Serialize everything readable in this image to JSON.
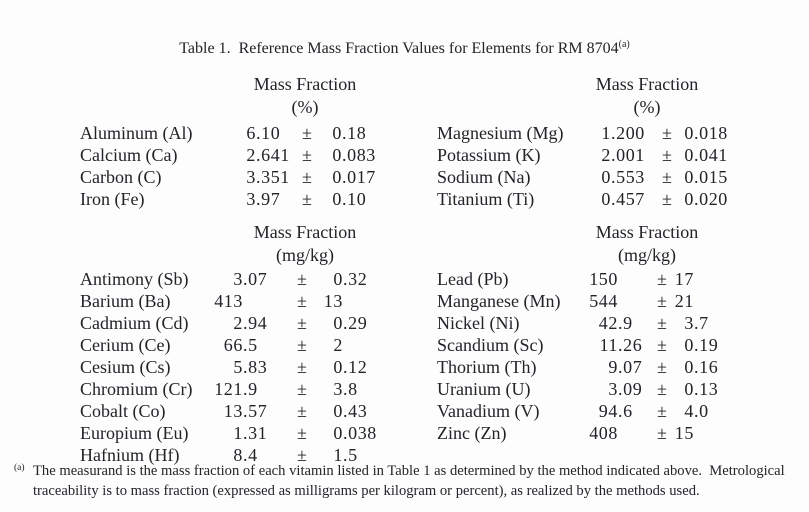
{
  "page": {
    "background": "#fdfdfd",
    "text_color": "#232329"
  },
  "title": {
    "text": "Table 1.  Reference Mass Fraction Values for Elements for RM 8704",
    "footnote_marker": "(a)"
  },
  "pm_symbol": "±",
  "sections": [
    {
      "id": "percent",
      "header": {
        "label": "Mass Fraction",
        "unit": "(%)"
      },
      "left_rows": [
        {
          "element": "Aluminum (Al)",
          "value": "6.10",
          "uncertainty": "0.18"
        },
        {
          "element": "Calcium (Ca)",
          "value": "2.641",
          "uncertainty": "0.083"
        },
        {
          "element": "Carbon (C)",
          "value": "3.351",
          "uncertainty": "0.017"
        },
        {
          "element": "Iron (Fe)",
          "value": "3.97",
          "uncertainty": "0.10"
        }
      ],
      "right_rows": [
        {
          "element": "Magnesium (Mg)",
          "value": "1.200",
          "uncertainty": "0.018"
        },
        {
          "element": "Potassium (K)",
          "value": "2.001",
          "uncertainty": "0.041"
        },
        {
          "element": "Sodium (Na)",
          "value": "0.553",
          "uncertainty": "0.015"
        },
        {
          "element": "Titanium (Ti)",
          "value": "0.457",
          "uncertainty": "0.020"
        }
      ]
    },
    {
      "id": "mg_per_kg",
      "header": {
        "label": "Mass Fraction",
        "unit": "(mg/kg)"
      },
      "left_rows": [
        {
          "element": "Antimony (Sb)",
          "value": "3.07",
          "uncertainty": "0.32"
        },
        {
          "element": "Barium (Ba)",
          "value": "413",
          "uncertainty": "13"
        },
        {
          "element": "Cadmium (Cd)",
          "value": "2.94",
          "uncertainty": "0.29"
        },
        {
          "element": "Cerium (Ce)",
          "value": "66.5",
          "uncertainty": "2"
        },
        {
          "element": "Cesium (Cs)",
          "value": "5.83",
          "uncertainty": "0.12"
        },
        {
          "element": "Chromium (Cr)",
          "value": "121.9",
          "uncertainty": "3.8"
        },
        {
          "element": "Cobalt (Co)",
          "value": "13.57",
          "uncertainty": "0.43"
        },
        {
          "element": "Europium (Eu)",
          "value": "1.31",
          "uncertainty": "0.038"
        },
        {
          "element": "Hafnium (Hf)",
          "value": "8.4",
          "uncertainty": "1.5"
        }
      ],
      "right_rows": [
        {
          "element": "Lead (Pb)",
          "value": "150",
          "uncertainty": "17"
        },
        {
          "element": "Manganese (Mn)",
          "value": "544",
          "uncertainty": "21"
        },
        {
          "element": "Nickel (Ni)",
          "value": "42.9",
          "uncertainty": "3.7"
        },
        {
          "element": "Scandium (Sc)",
          "value": "11.26",
          "uncertainty": "0.19"
        },
        {
          "element": "Thorium (Th)",
          "value": "9.07",
          "uncertainty": "0.16"
        },
        {
          "element": "Uranium (U)",
          "value": "3.09",
          "uncertainty": "0.13"
        },
        {
          "element": "Vanadium (V)",
          "value": "94.6",
          "uncertainty": "4.0"
        },
        {
          "element": "Zinc (Zn)",
          "value": "408",
          "uncertainty": "15"
        }
      ]
    }
  ],
  "footnote": {
    "marker": "(a)",
    "lines": [
      "The measurand is the mass fraction of each vitamin listed in Table 1 as determined by the method indicated above.  Metrological",
      "traceability is to mass fraction (expressed as milligrams per kilogram or percent), as realized by the methods used."
    ]
  }
}
